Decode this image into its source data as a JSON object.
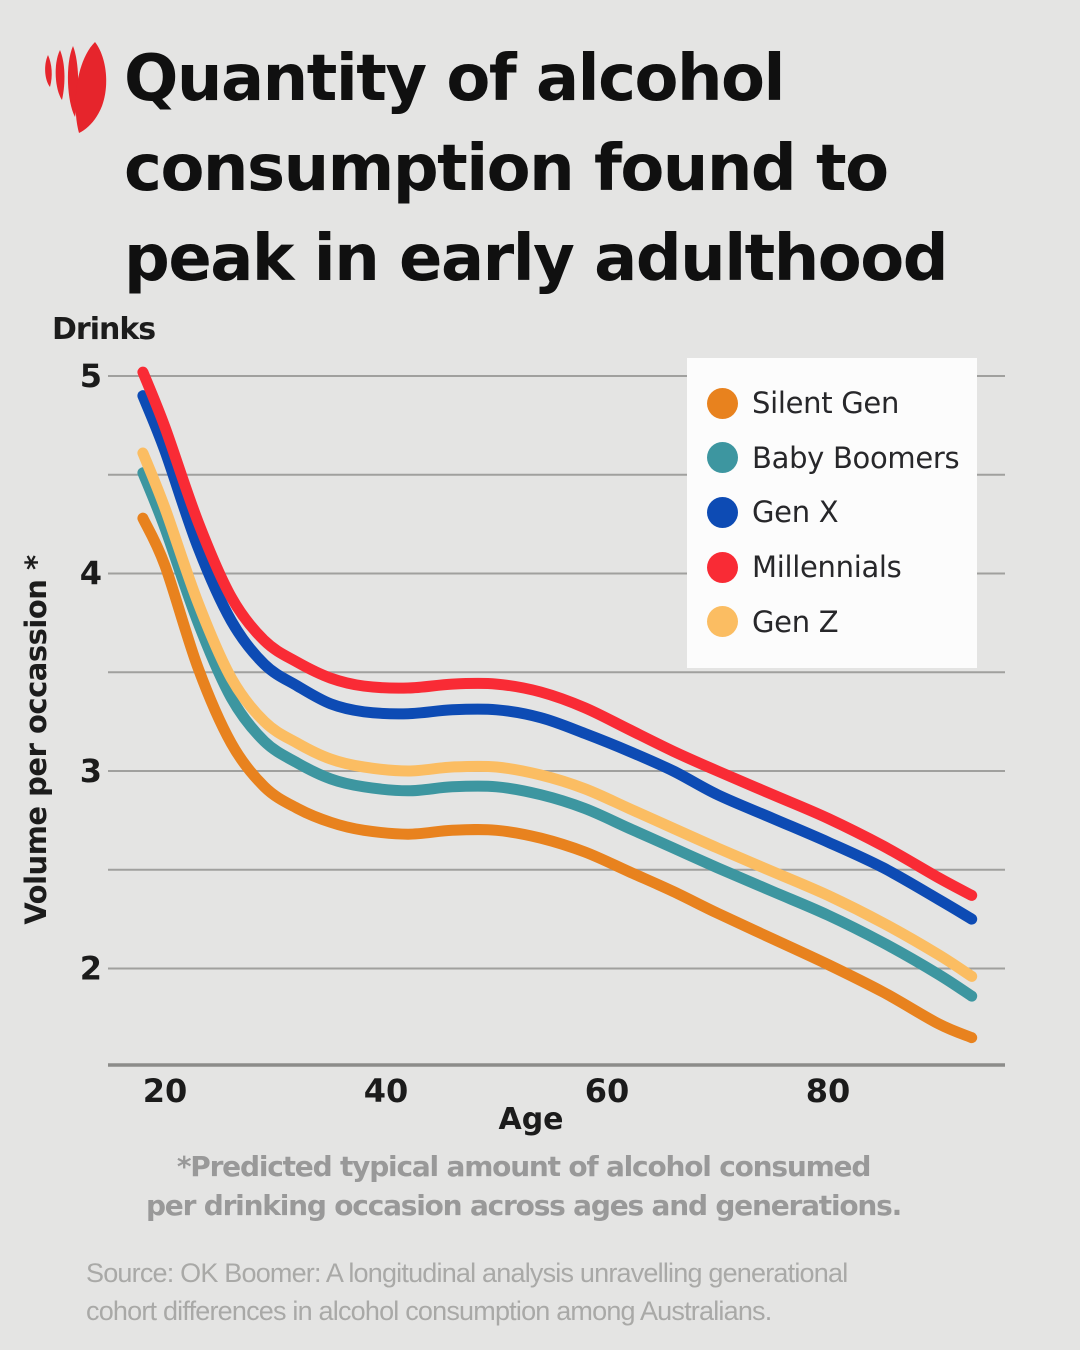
{
  "brand": {
    "name": "SBS",
    "logo_color": "#E6252C"
  },
  "title": {
    "lines": [
      "Quantity of alcohol",
      "consumption found to",
      "peak in early adulthood"
    ]
  },
  "chart_data": {
    "type": "line",
    "title": "Quantity of alcohol consumption found to peak in early adulthood",
    "unit_header": "Drinks",
    "ylabel": "Volume per occassion *",
    "xlabel": "Age",
    "x_ticks": [
      20,
      40,
      60,
      80
    ],
    "y_ticks": [
      5,
      4,
      3,
      2
    ],
    "gridlines": [
      5,
      4.5,
      4,
      3.5,
      3,
      2.5,
      2
    ],
    "xlim": [
      15,
      96
    ],
    "ylim": [
      1.5,
      5.1
    ],
    "grid": true,
    "legend_position": "upper right",
    "background_color": "#E4E4E3",
    "x": [
      18,
      20,
      23,
      26,
      29,
      32,
      35,
      38,
      42,
      46,
      50,
      54,
      58,
      62,
      66,
      70,
      75,
      80,
      85,
      90,
      93
    ],
    "series": [
      {
        "name": "Silent Gen",
        "color": "#E8821E",
        "values": [
          4.28,
          4.04,
          3.52,
          3.14,
          2.92,
          2.81,
          2.74,
          2.7,
          2.68,
          2.7,
          2.7,
          2.66,
          2.59,
          2.49,
          2.39,
          2.28,
          2.15,
          2.02,
          1.88,
          1.72,
          1.65
        ]
      },
      {
        "name": "Baby Boomers",
        "color": "#3D96A0",
        "values": [
          4.51,
          4.23,
          3.75,
          3.37,
          3.15,
          3.04,
          2.96,
          2.92,
          2.9,
          2.92,
          2.92,
          2.88,
          2.81,
          2.71,
          2.61,
          2.51,
          2.39,
          2.27,
          2.13,
          1.97,
          1.86
        ]
      },
      {
        "name": "Gen X",
        "color": "#0D4BB4",
        "values": [
          4.9,
          4.62,
          4.13,
          3.76,
          3.54,
          3.43,
          3.34,
          3.3,
          3.29,
          3.31,
          3.31,
          3.27,
          3.19,
          3.1,
          3.0,
          2.88,
          2.76,
          2.64,
          2.51,
          2.35,
          2.25
        ]
      },
      {
        "name": "Millennials",
        "color": "#F92B35",
        "values": [
          5.02,
          4.74,
          4.26,
          3.88,
          3.66,
          3.55,
          3.47,
          3.43,
          3.42,
          3.44,
          3.44,
          3.4,
          3.32,
          3.21,
          3.1,
          3.0,
          2.88,
          2.76,
          2.62,
          2.46,
          2.37
        ]
      },
      {
        "name": "Gen Z",
        "color": "#FBBD62",
        "values": [
          4.61,
          4.33,
          3.85,
          3.47,
          3.25,
          3.14,
          3.06,
          3.02,
          3.0,
          3.02,
          3.02,
          2.98,
          2.91,
          2.81,
          2.71,
          2.61,
          2.49,
          2.37,
          2.23,
          2.07,
          1.96
        ]
      }
    ]
  },
  "footnote": {
    "line1": "*Predicted typical amount of alcohol consumed",
    "line2": "per drinking occasion across ages and generations."
  },
  "source": {
    "line1": "Source: OK Boomer: A longitudinal analysis unravelling generational",
    "line2": "cohort differences in alcohol consumption among Australians."
  }
}
